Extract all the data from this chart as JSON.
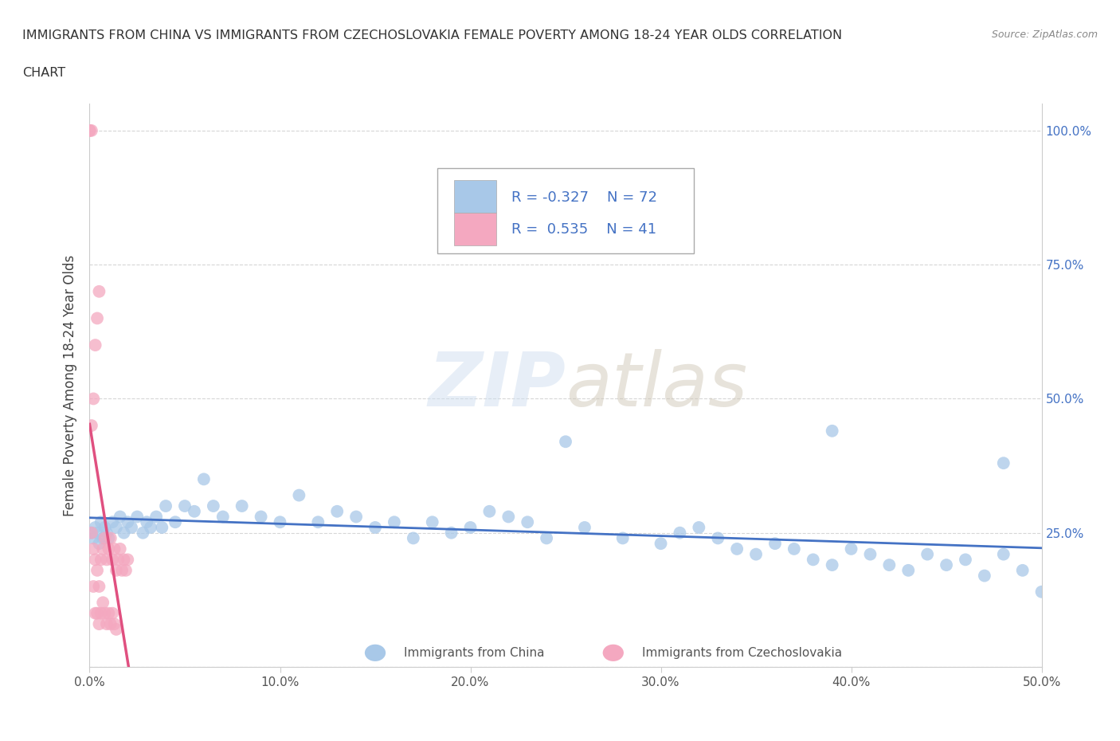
{
  "title_line1": "IMMIGRANTS FROM CHINA VS IMMIGRANTS FROM CZECHOSLOVAKIA FEMALE POVERTY AMONG 18-24 YEAR OLDS CORRELATION",
  "title_line2": "CHART",
  "source_text": "Source: ZipAtlas.com",
  "ylabel": "Female Poverty Among 18-24 Year Olds",
  "watermark": "ZIPatlas",
  "xlim": [
    0.0,
    0.5
  ],
  "ylim": [
    0.0,
    1.05
  ],
  "china_color": "#a8c8e8",
  "czech_color": "#f4a8c0",
  "china_line_color": "#4472c4",
  "czech_line_color": "#e05080",
  "legend_text_color": "#4472c4",
  "R_china": -0.327,
  "N_china": 72,
  "R_czech": 0.535,
  "N_czech": 41,
  "background_color": "#ffffff",
  "grid_color": "#cccccc",
  "china_x": [
    0.001,
    0.002,
    0.003,
    0.004,
    0.005,
    0.006,
    0.007,
    0.008,
    0.009,
    0.01,
    0.012,
    0.014,
    0.016,
    0.018,
    0.02,
    0.022,
    0.025,
    0.028,
    0.03,
    0.032,
    0.035,
    0.038,
    0.04,
    0.045,
    0.05,
    0.055,
    0.06,
    0.065,
    0.07,
    0.08,
    0.09,
    0.1,
    0.11,
    0.12,
    0.13,
    0.14,
    0.15,
    0.16,
    0.17,
    0.18,
    0.19,
    0.2,
    0.21,
    0.22,
    0.23,
    0.24,
    0.25,
    0.26,
    0.28,
    0.3,
    0.31,
    0.32,
    0.33,
    0.34,
    0.35,
    0.36,
    0.37,
    0.38,
    0.39,
    0.4,
    0.41,
    0.42,
    0.43,
    0.44,
    0.45,
    0.46,
    0.47,
    0.48,
    0.49,
    0.5,
    0.39,
    0.48
  ],
  "china_y": [
    0.25,
    0.24,
    0.26,
    0.25,
    0.23,
    0.27,
    0.24,
    0.26,
    0.25,
    0.24,
    0.27,
    0.26,
    0.28,
    0.25,
    0.27,
    0.26,
    0.28,
    0.25,
    0.27,
    0.26,
    0.28,
    0.26,
    0.3,
    0.27,
    0.3,
    0.29,
    0.35,
    0.3,
    0.28,
    0.3,
    0.28,
    0.27,
    0.32,
    0.27,
    0.29,
    0.28,
    0.26,
    0.27,
    0.24,
    0.27,
    0.25,
    0.26,
    0.29,
    0.28,
    0.27,
    0.24,
    0.42,
    0.26,
    0.24,
    0.23,
    0.25,
    0.26,
    0.24,
    0.22,
    0.21,
    0.23,
    0.22,
    0.2,
    0.19,
    0.22,
    0.21,
    0.19,
    0.18,
    0.21,
    0.19,
    0.2,
    0.17,
    0.21,
    0.18,
    0.14,
    0.44,
    0.38
  ],
  "czech_x": [
    0.001,
    0.002,
    0.003,
    0.004,
    0.005,
    0.006,
    0.007,
    0.008,
    0.009,
    0.01,
    0.011,
    0.012,
    0.013,
    0.014,
    0.015,
    0.016,
    0.017,
    0.018,
    0.019,
    0.02,
    0.001,
    0.002,
    0.003,
    0.004,
    0.005,
    0.0,
    0.0,
    0.001,
    0.002,
    0.003,
    0.004,
    0.005,
    0.006,
    0.007,
    0.008,
    0.009,
    0.01,
    0.011,
    0.012,
    0.013,
    0.014
  ],
  "czech_y": [
    0.25,
    0.22,
    0.2,
    0.18,
    0.15,
    0.2,
    0.22,
    0.24,
    0.2,
    0.22,
    0.24,
    0.2,
    0.22,
    0.18,
    0.2,
    0.22,
    0.18,
    0.2,
    0.18,
    0.2,
    0.45,
    0.5,
    0.6,
    0.65,
    0.7,
    1.0,
    1.0,
    1.0,
    0.15,
    0.1,
    0.1,
    0.08,
    0.1,
    0.12,
    0.1,
    0.08,
    0.1,
    0.08,
    0.1,
    0.08,
    0.07
  ]
}
